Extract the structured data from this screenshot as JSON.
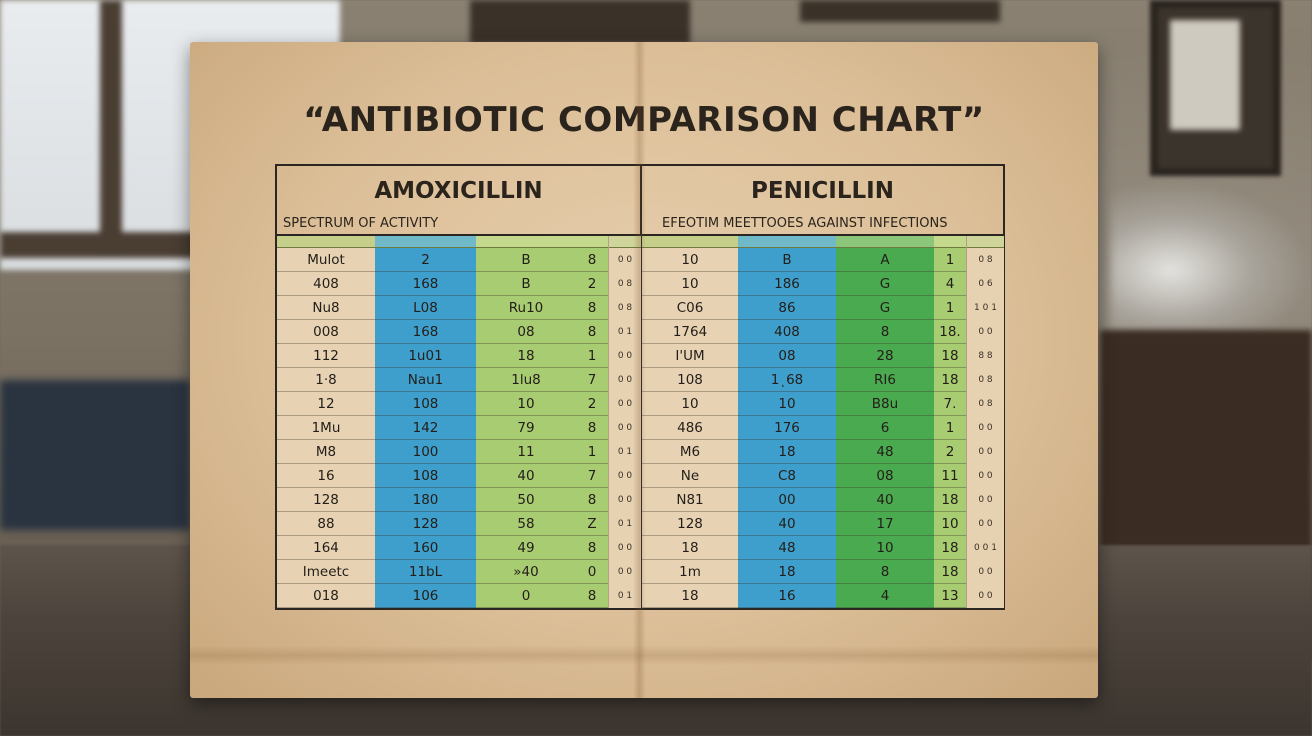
{
  "title": "“ANTIBIOTIC COMPARISON CHART”",
  "amoxicillin": {
    "name": "AMOXICILLIN",
    "subtitle": "SPECTRUM OF ACTIVITY",
    "col1": [
      "Mulot",
      "408",
      "Nu8",
      "008",
      "112",
      "1·8",
      "12",
      "1Mu",
      "M8",
      "16",
      "128",
      "88",
      "164",
      "Imeetc",
      "018"
    ],
    "col2": [
      "2",
      "168",
      "L08",
      "168",
      "1u01",
      "Nau1",
      "108",
      "142",
      "100",
      "108",
      "180",
      "128",
      "160",
      "11bL",
      "106"
    ],
    "col3": [
      "B",
      "B",
      "Ru10",
      "08",
      "18",
      "1lu8",
      "10",
      "79",
      "11",
      "40",
      "50",
      "58",
      "49",
      "»40",
      "0"
    ],
    "col4": [
      "8",
      "2",
      "8",
      "8",
      "1",
      "7",
      "2",
      "8",
      "1",
      "7",
      "8",
      "Z",
      "8",
      "0",
      "8"
    ],
    "notes": [
      "0 0",
      "0 8",
      "0 8",
      "0 1",
      "0 0",
      "0 0",
      "0 0",
      "0 0",
      "0 1",
      "0 0",
      "0 0",
      "0 1",
      "0 0",
      "0 0",
      "0 1"
    ]
  },
  "penicillin": {
    "name": "PENICILLIN",
    "subtitle": "EFEOTIM MEETTOOES AGAINST INFECTIONS",
    "col1": [
      "10",
      "10",
      "C06",
      "1764",
      "I'UM",
      "108",
      "10",
      "486",
      "M6",
      "Ne",
      "N81",
      "128",
      "18",
      "1m",
      "18"
    ],
    "col2": [
      "B",
      "186",
      "86",
      "408",
      "08",
      "1ͺ68",
      "10",
      "176",
      "18",
      "C8",
      "00",
      "40",
      "48",
      "18",
      "16"
    ],
    "col3": [
      "A",
      "G",
      "G",
      "8",
      "28",
      "RI6",
      "B8u",
      "6",
      "48",
      "08",
      "40",
      "17",
      "10",
      "8",
      "4"
    ],
    "col4": [
      "1",
      "4",
      "1",
      "18.",
      "18",
      "18",
      "7.",
      "1",
      "2",
      "11",
      "18",
      "10",
      "18",
      "18",
      "13"
    ],
    "notes": [
      "0 8",
      "0 6",
      "1 0 1",
      "0 0",
      "8 8",
      "0 8",
      "0 8",
      "0 0",
      "0 0",
      "0 0",
      "0 0",
      "0 0",
      "0 0 1",
      "0 0",
      "0 0"
    ]
  }
}
